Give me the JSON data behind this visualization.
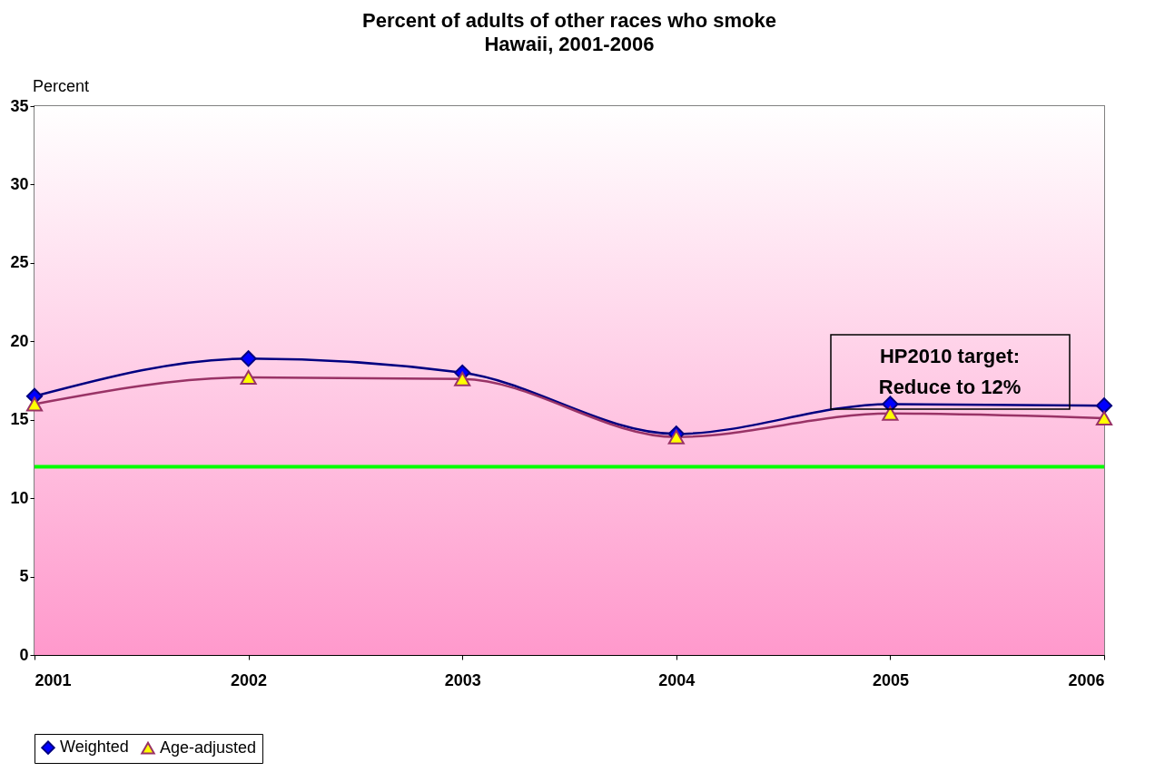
{
  "chart_data": {
    "type": "line",
    "title": "Percent of adults of other races who smoke",
    "subtitle": "Hawaii, 2001-2006",
    "ylabel": "Percent",
    "x": [
      2001,
      2002,
      2003,
      2004,
      2005,
      2006
    ],
    "series": [
      {
        "name": "Weighted",
        "color": "#000080",
        "marker": "diamond",
        "values": [
          16.5,
          18.9,
          18.0,
          14.1,
          16.0,
          15.9
        ]
      },
      {
        "name": "Age-adjusted",
        "color": "#993366",
        "marker": "triangle",
        "values": [
          16.0,
          17.7,
          17.6,
          13.9,
          15.4,
          15.1
        ]
      }
    ],
    "xlim": [
      2001,
      2006
    ],
    "xticks": [
      2001,
      2002,
      2003,
      2004,
      2005,
      2006
    ],
    "ylim": [
      0,
      35
    ],
    "yticks": [
      0,
      5,
      10,
      15,
      20,
      25,
      30,
      35
    ],
    "ref_lines": [
      {
        "axis": "y",
        "value": 12,
        "color": "#00ff00",
        "line_style": "solid"
      }
    ],
    "annotations": [
      "HP2010 target:\nReduce to 12%"
    ],
    "grid": false,
    "legend": "bottom",
    "line_style": "solid"
  }
}
